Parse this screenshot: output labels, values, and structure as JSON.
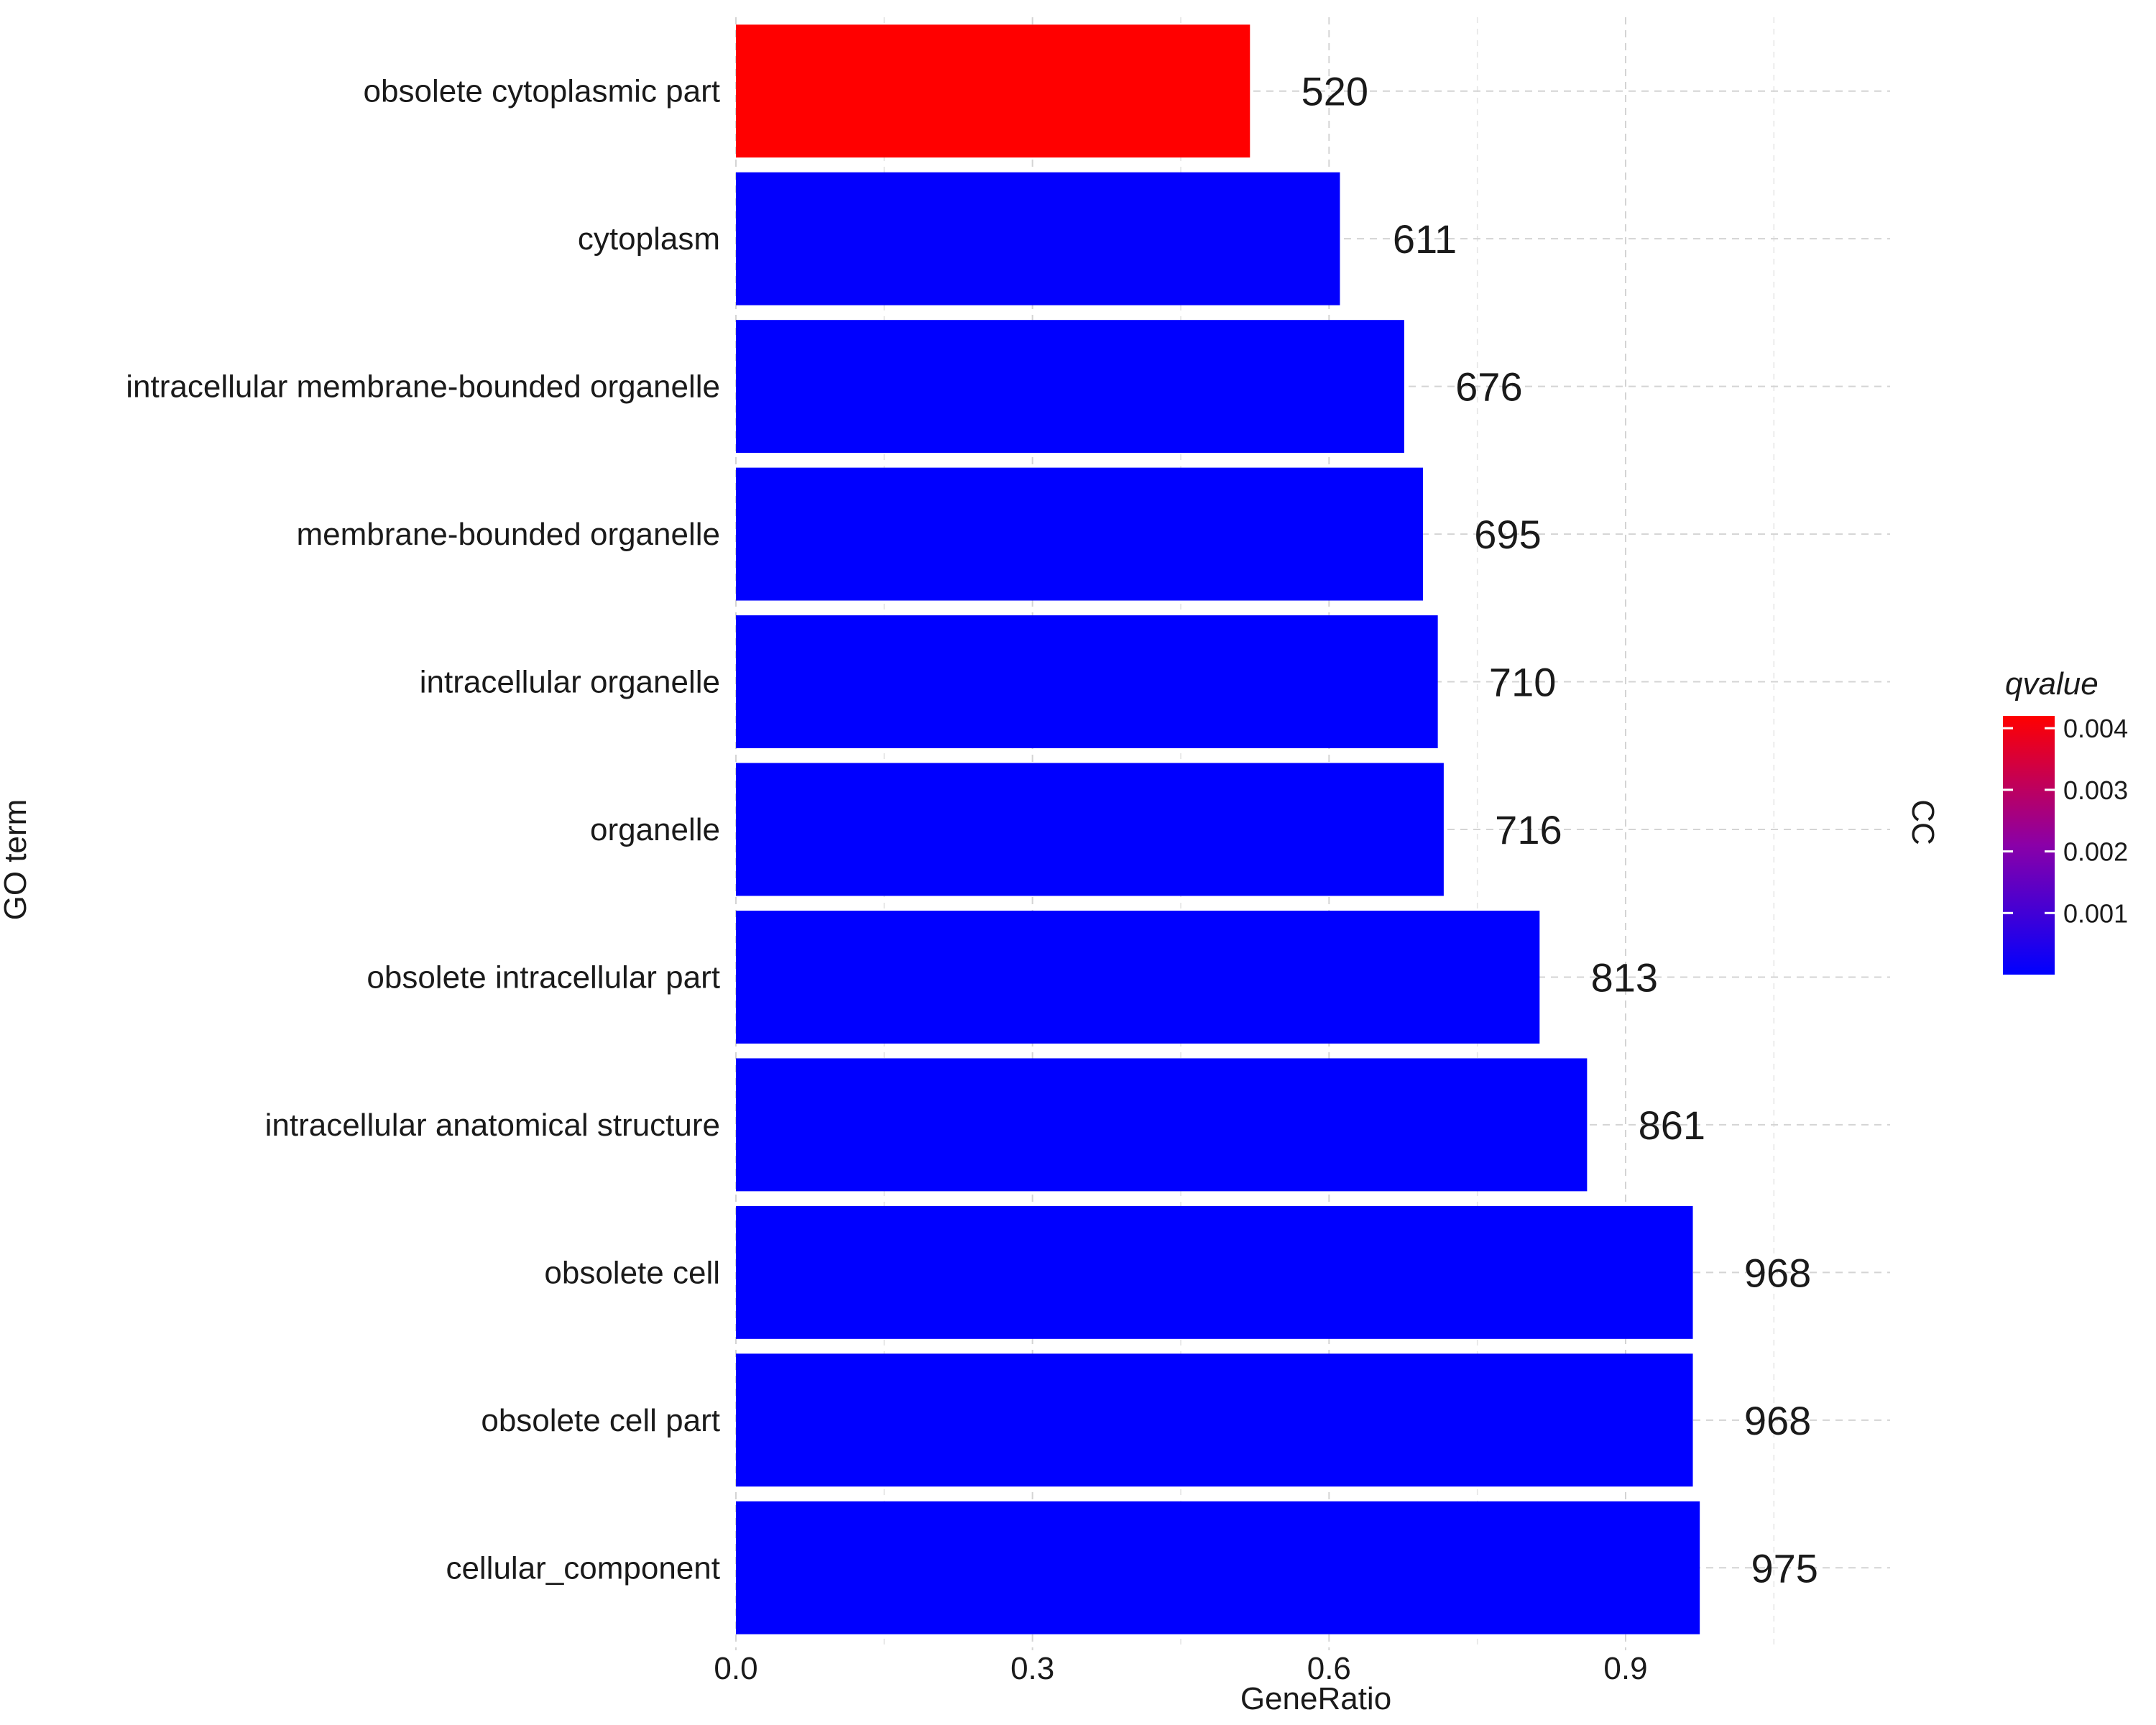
{
  "chart_data": {
    "type": "bar",
    "orientation": "horizontal",
    "facet_label": "CC",
    "xlabel": "GeneRatio",
    "ylabel": "GO term",
    "xlim": [
      0,
      1.05
    ],
    "x_ticks": [
      {
        "value": 0.0,
        "label": "0.0"
      },
      {
        "value": 0.3,
        "label": "0.3"
      },
      {
        "value": 0.6,
        "label": "0.6"
      },
      {
        "value": 0.9,
        "label": "0.9"
      }
    ],
    "grid": true,
    "categories": [
      "obsolete cytoplasmic part",
      "cytoplasm",
      "intracellular membrane-bounded organelle",
      "membrane-bounded organelle",
      "intracellular organelle",
      "organelle",
      "obsolete intracellular part",
      "intracellular anatomical structure",
      "obsolete cell",
      "obsolete cell part",
      "cellular_component"
    ],
    "values": [
      0.52,
      0.611,
      0.676,
      0.695,
      0.71,
      0.716,
      0.813,
      0.861,
      0.968,
      0.968,
      0.975
    ],
    "counts": [
      "520",
      "611",
      "676",
      "695",
      "710",
      "716",
      "813",
      "861",
      "968",
      "968",
      "975"
    ],
    "qvalues": [
      0.0042,
      5e-05,
      0.0,
      0.0,
      0.0,
      0.0,
      0.0,
      0.0,
      0.0,
      0.0,
      0.0
    ],
    "color_scale": {
      "title": "qvalue",
      "low_color": "#0000ff",
      "high_color": "#ff0000",
      "range": [
        0.0,
        0.0042
      ],
      "ticks": [
        {
          "value": 0.004,
          "label": "0.004"
        },
        {
          "value": 0.003,
          "label": "0.003"
        },
        {
          "value": 0.002,
          "label": "0.002"
        },
        {
          "value": 0.001,
          "label": "0.001"
        }
      ],
      "legend_position": "right"
    }
  }
}
